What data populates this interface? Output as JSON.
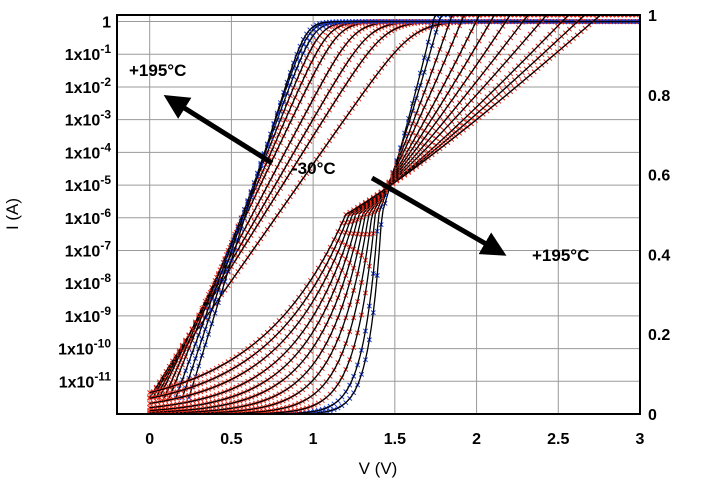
{
  "chart_data": {
    "type": "scatter",
    "title": "",
    "xlabel": "V (V)",
    "ylabel_left": "I (A)",
    "ylabel_right": "",
    "xlim": [
      -0.2,
      3.0
    ],
    "ylim_left_log10": [
      -12,
      0.2
    ],
    "ylim_right": [
      0,
      1.0
    ],
    "grid": true,
    "x_ticks": [
      "0",
      "0.5",
      "1",
      "1.5",
      "2",
      "2.5",
      "3"
    ],
    "x_tick_values": [
      0,
      0.5,
      1,
      1.5,
      2,
      2.5,
      3
    ],
    "y_left_ticks": [
      {
        "mant": "1",
        "exp": ""
      },
      {
        "mant": "1x10",
        "exp": "-1"
      },
      {
        "mant": "1x10",
        "exp": "-2"
      },
      {
        "mant": "1x10",
        "exp": "-3"
      },
      {
        "mant": "1x10",
        "exp": "-4"
      },
      {
        "mant": "1x10",
        "exp": "-5"
      },
      {
        "mant": "1x10",
        "exp": "-6"
      },
      {
        "mant": "1x10",
        "exp": "-7"
      },
      {
        "mant": "1x10",
        "exp": "-8"
      },
      {
        "mant": "1x10",
        "exp": "-9"
      },
      {
        "mant": "1x10",
        "exp": "-10"
      },
      {
        "mant": "1x10",
        "exp": "-11"
      }
    ],
    "y_left_tick_exponents": [
      0,
      -1,
      -2,
      -3,
      -4,
      -5,
      -6,
      -7,
      -8,
      -9,
      -10,
      -11
    ],
    "y_right_ticks": [
      "0",
      "0.2",
      "0.4",
      "0.6",
      "0.8",
      "1"
    ],
    "y_right_tick_values": [
      0,
      0.2,
      0.4,
      0.6,
      0.8,
      1.0
    ],
    "annotations": [
      "+195°C",
      "-30°C",
      "+195°C"
    ],
    "colors": {
      "hot_series": "#e8291c",
      "cold_series": "#1f3fd1",
      "fit": "#000000",
      "grid": "#9a9a9a"
    },
    "log_series": [
      {
        "color": "red",
        "vstart": 0.0,
        "vt": 0.11,
        "ss": 0.14
      },
      {
        "color": "red",
        "vstart": 0.0,
        "vt": 0.16,
        "ss": 0.125
      },
      {
        "color": "red",
        "vstart": 0.02,
        "vt": 0.21,
        "ss": 0.115
      },
      {
        "color": "red",
        "vstart": 0.04,
        "vt": 0.26,
        "ss": 0.105
      },
      {
        "color": "red",
        "vstart": 0.06,
        "vt": 0.31,
        "ss": 0.095
      },
      {
        "color": "red",
        "vstart": 0.09,
        "vt": 0.37,
        "ss": 0.087
      },
      {
        "color": "red",
        "vstart": 0.12,
        "vt": 0.43,
        "ss": 0.08
      },
      {
        "color": "blue",
        "vstart": 0.16,
        "vt": 0.5,
        "ss": 0.073
      },
      {
        "color": "blue",
        "vstart": 0.2,
        "vt": 0.56,
        "ss": 0.067
      },
      {
        "color": "blue",
        "vstart": 0.24,
        "vt": 0.62,
        "ss": 0.062
      }
    ],
    "linear_series": [
      {
        "color": "blue",
        "vend": 1.78,
        "vmid": 1.42,
        "w": 0.16
      },
      {
        "color": "blue",
        "vend": 1.83,
        "vmid": 1.4,
        "w": 0.19
      },
      {
        "color": "red",
        "vend": 1.92,
        "vmid": 1.38,
        "w": 0.25
      },
      {
        "color": "red",
        "vend": 2.02,
        "vmid": 1.36,
        "w": 0.32
      },
      {
        "color": "red",
        "vend": 2.15,
        "vmid": 1.34,
        "w": 0.4
      },
      {
        "color": "red",
        "vend": 2.28,
        "vmid": 1.32,
        "w": 0.48
      },
      {
        "color": "red",
        "vend": 2.42,
        "vmid": 1.3,
        "w": 0.57
      },
      {
        "color": "red",
        "vend": 2.58,
        "vmid": 1.28,
        "w": 0.66
      },
      {
        "color": "red",
        "vend": 2.75,
        "vmid": 1.26,
        "w": 0.76
      },
      {
        "color": "red",
        "vend": 2.95,
        "vmid": 1.24,
        "w": 0.88
      },
      {
        "color": "red",
        "vend": 3.1,
        "vmid": 1.22,
        "w": 1.0
      },
      {
        "color": "red",
        "vend": 3.25,
        "vmid": 1.2,
        "w": 1.12
      }
    ]
  }
}
